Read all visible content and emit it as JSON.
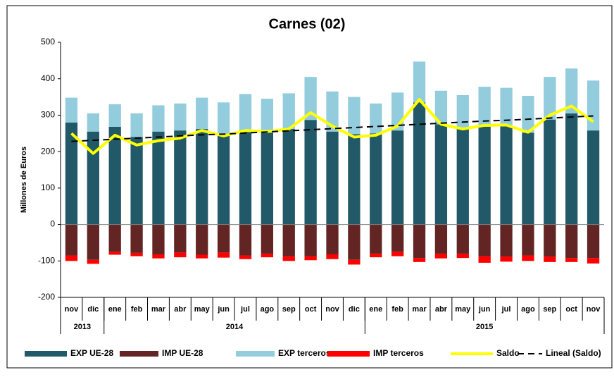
{
  "chart_data": {
    "type": "stacked_bar_line",
    "title": "Carnes (02)",
    "y_label": "Millones de Euros",
    "categories": [
      "nov",
      "dic",
      "ene",
      "feb",
      "mar",
      "abr",
      "may",
      "jun",
      "jul",
      "ago",
      "sep",
      "oct",
      "nov",
      "dic",
      "ene",
      "feb",
      "mar",
      "abr",
      "may",
      "jun",
      "jul",
      "ago",
      "sep",
      "oct",
      "nov"
    ],
    "year_groups": [
      {
        "name": "2013",
        "count": 2
      },
      {
        "name": "2014",
        "count": 12
      },
      {
        "name": "2015",
        "count": 11
      }
    ],
    "ylim": [
      -200,
      500
    ],
    "yticks": [
      -200,
      -100,
      0,
      100,
      200,
      300,
      400,
      500
    ],
    "series": [
      {
        "name": "EXP UE-28",
        "kind": "bar",
        "color": "#215968",
        "values": [
          280,
          255,
          268,
          240,
          255,
          258,
          262,
          248,
          258,
          252,
          262,
          287,
          255,
          248,
          250,
          258,
          335,
          275,
          262,
          268,
          270,
          252,
          288,
          305,
          258
        ]
      },
      {
        "name": "IMP UE-28",
        "kind": "bar",
        "color": "#632523",
        "values": [
          -85,
          -97,
          -75,
          -78,
          -82,
          -77,
          -83,
          -77,
          -85,
          -80,
          -87,
          -87,
          -82,
          -97,
          -80,
          -75,
          -92,
          -80,
          -80,
          -87,
          -88,
          -85,
          -88,
          -92,
          -92
        ]
      },
      {
        "name": "EXP terceros",
        "kind": "bar",
        "color": "#93CDDD",
        "values": [
          68,
          50,
          62,
          65,
          72,
          74,
          86,
          87,
          100,
          93,
          98,
          118,
          110,
          102,
          82,
          104,
          112,
          92,
          93,
          110,
          105,
          101,
          117,
          123,
          137
        ]
      },
      {
        "name": "IMP terceros",
        "kind": "bar",
        "color": "#FF0000",
        "values": [
          -15,
          -11,
          -8,
          -9,
          -11,
          -13,
          -10,
          -14,
          -10,
          -10,
          -13,
          -11,
          -13,
          -13,
          -10,
          -12,
          -11,
          -13,
          -12,
          -18,
          -14,
          -15,
          -15,
          -11,
          -15
        ]
      },
      {
        "name": "Saldo",
        "kind": "line",
        "color": "#FFFF00",
        "values": [
          250,
          195,
          245,
          218,
          230,
          237,
          258,
          243,
          258,
          255,
          262,
          307,
          270,
          240,
          245,
          270,
          343,
          275,
          262,
          272,
          273,
          253,
          300,
          325,
          282
        ]
      },
      {
        "name": "Lineal (Saldo)",
        "kind": "dashed",
        "color": "#000000",
        "values": [
          228,
          231,
          234,
          237,
          240,
          243,
          246,
          248,
          251,
          254,
          257,
          260,
          263,
          266,
          269,
          272,
          275,
          278,
          281,
          284,
          286,
          289,
          292,
          295,
          298
        ]
      }
    ]
  }
}
